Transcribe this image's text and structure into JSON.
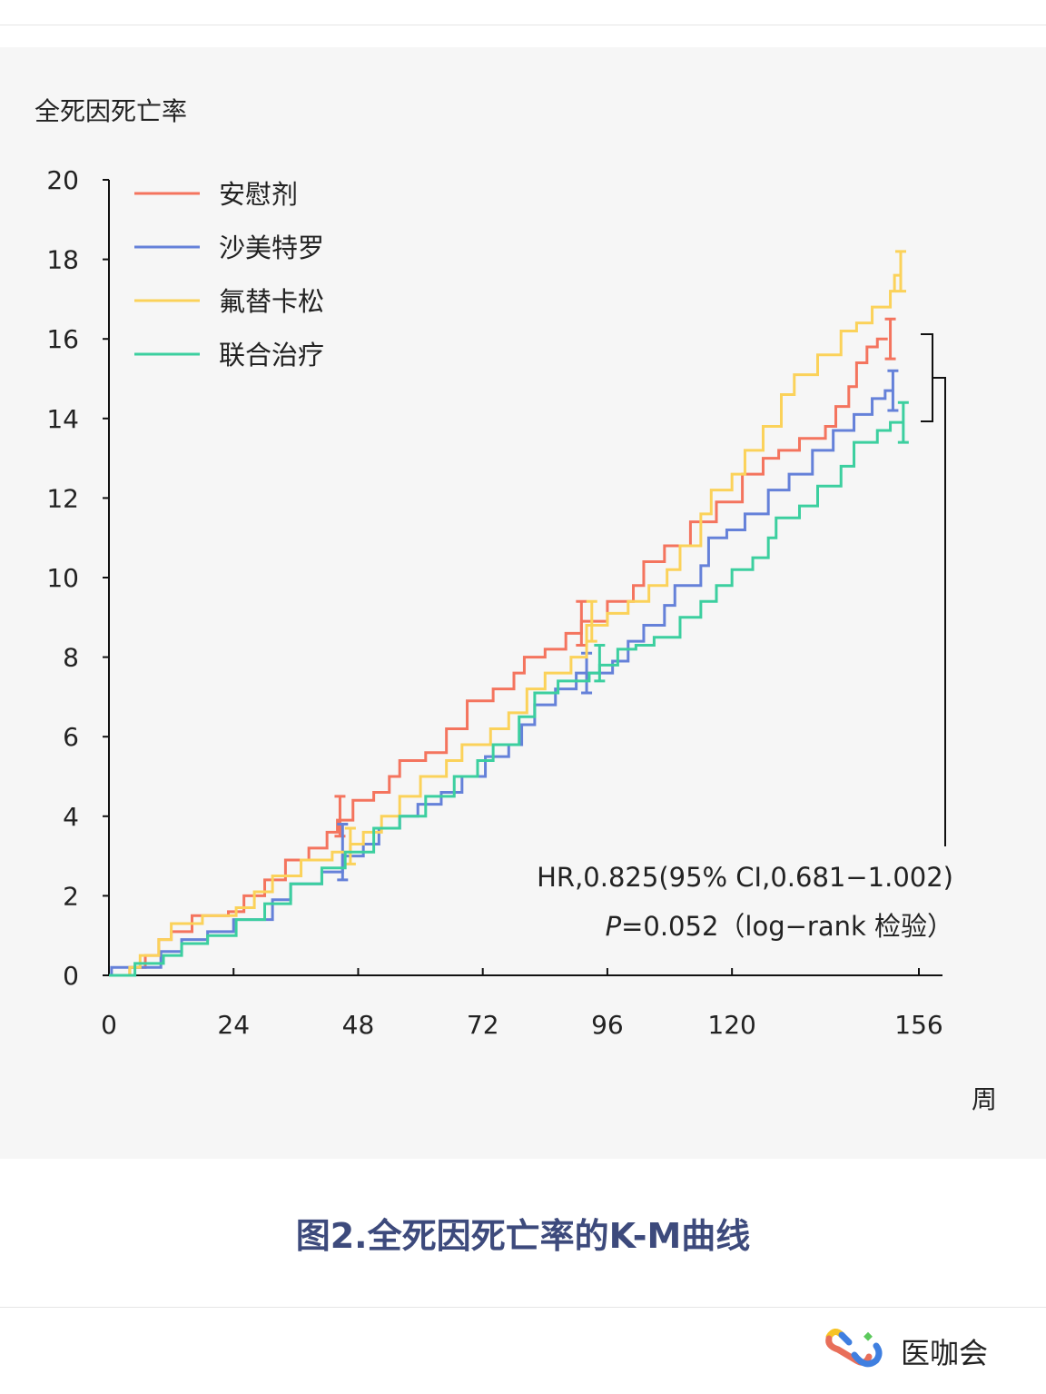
{
  "chart_data": {
    "type": "line",
    "style": "step",
    "title": "",
    "ylabel": "全死因死亡率",
    "xlabel": "周",
    "xlim": [
      0,
      160
    ],
    "ylim": [
      0,
      20
    ],
    "xticks": [
      0,
      24,
      48,
      72,
      96,
      120,
      156
    ],
    "yticks": [
      0,
      2,
      4,
      6,
      8,
      10,
      12,
      14,
      16,
      18,
      20
    ],
    "legend_position": "top-left",
    "series": [
      {
        "name": "安慰剂",
        "color": "#f4745e",
        "points": [
          [
            0,
            0
          ],
          [
            4,
            0.2
          ],
          [
            7,
            0.5
          ],
          [
            9.6,
            0.9
          ],
          [
            12,
            1.1
          ],
          [
            16,
            1.5
          ],
          [
            23,
            1.6
          ],
          [
            26,
            2.0
          ],
          [
            30,
            2.4
          ],
          [
            34,
            2.9
          ],
          [
            38.5,
            3.2
          ],
          [
            42,
            3.6
          ],
          [
            44,
            3.9
          ],
          [
            47,
            4.4
          ],
          [
            51,
            4.6
          ],
          [
            54,
            5.0
          ],
          [
            56,
            5.4
          ],
          [
            61,
            5.6
          ],
          [
            65,
            6.2
          ],
          [
            69,
            6.9
          ],
          [
            74,
            7.2
          ],
          [
            78,
            7.6
          ],
          [
            80,
            8.0
          ],
          [
            84,
            8.2
          ],
          [
            88,
            8.6
          ],
          [
            91,
            8.9
          ],
          [
            96,
            9.4
          ],
          [
            101,
            9.8
          ],
          [
            103,
            10.4
          ],
          [
            107,
            10.8
          ],
          [
            112,
            11.4
          ],
          [
            117,
            11.9
          ],
          [
            122,
            12.6
          ],
          [
            126,
            13.0
          ],
          [
            129,
            13.2
          ],
          [
            133,
            13.5
          ],
          [
            138,
            13.8
          ],
          [
            140,
            14.3
          ],
          [
            142.5,
            14.8
          ],
          [
            144,
            15.4
          ],
          [
            146,
            15.8
          ],
          [
            148,
            16.0
          ],
          [
            150,
            16.0
          ]
        ],
        "error_bars": [
          [
            44.5,
            3.5,
            4.5
          ],
          [
            91,
            8.3,
            9.4
          ],
          [
            150.5,
            15.5,
            16.5
          ]
        ]
      },
      {
        "name": "沙美特罗",
        "color": "#6581d9",
        "points": [
          [
            0,
            0
          ],
          [
            0.5,
            0.2
          ],
          [
            10,
            0.6
          ],
          [
            14,
            0.9
          ],
          [
            19,
            1.1
          ],
          [
            24,
            1.4
          ],
          [
            31.5,
            1.9
          ],
          [
            35,
            2.3
          ],
          [
            41,
            2.6
          ],
          [
            45,
            3.0
          ],
          [
            49,
            3.3
          ],
          [
            52,
            3.7
          ],
          [
            56,
            4.0
          ],
          [
            59.5,
            4.3
          ],
          [
            64,
            4.6
          ],
          [
            68,
            5.0
          ],
          [
            72.5,
            5.5
          ],
          [
            77,
            5.8
          ],
          [
            79.5,
            6.3
          ],
          [
            82,
            6.8
          ],
          [
            86,
            7.2
          ],
          [
            90,
            7.6
          ],
          [
            97,
            7.9
          ],
          [
            100,
            8.4
          ],
          [
            103,
            8.8
          ],
          [
            107,
            9.3
          ],
          [
            109,
            9.8
          ],
          [
            114,
            10.3
          ],
          [
            115.5,
            11.0
          ],
          [
            119,
            11.2
          ],
          [
            122.5,
            11.6
          ],
          [
            127,
            12.2
          ],
          [
            131,
            12.6
          ],
          [
            135.5,
            13.2
          ],
          [
            139.5,
            13.7
          ],
          [
            143.5,
            14.1
          ],
          [
            147,
            14.5
          ],
          [
            149.5,
            14.7
          ],
          [
            151,
            14.7
          ]
        ],
        "error_bars": [
          [
            45,
            2.4,
            3.8
          ],
          [
            92,
            7.1,
            8.1
          ],
          [
            151,
            14.2,
            15.2
          ]
        ]
      },
      {
        "name": "氟替卡松",
        "color": "#fbd25a",
        "points": [
          [
            0,
            0
          ],
          [
            4,
            0.2
          ],
          [
            6,
            0.5
          ],
          [
            9.6,
            0.9
          ],
          [
            12,
            1.3
          ],
          [
            18,
            1.5
          ],
          [
            24.5,
            1.7
          ],
          [
            28,
            2.1
          ],
          [
            31.5,
            2.5
          ],
          [
            37,
            2.9
          ],
          [
            43,
            3.1
          ],
          [
            46.5,
            3.3
          ],
          [
            49,
            3.6
          ],
          [
            52.5,
            4.0
          ],
          [
            56,
            4.5
          ],
          [
            60,
            5.0
          ],
          [
            65,
            5.4
          ],
          [
            68,
            5.8
          ],
          [
            73.5,
            6.2
          ],
          [
            77,
            6.6
          ],
          [
            80.5,
            7.2
          ],
          [
            84,
            7.6
          ],
          [
            89,
            8.0
          ],
          [
            92,
            8.8
          ],
          [
            96,
            9.1
          ],
          [
            100,
            9.4
          ],
          [
            104,
            9.8
          ],
          [
            107.5,
            10.2
          ],
          [
            110,
            10.8
          ],
          [
            114,
            11.6
          ],
          [
            116,
            12.2
          ],
          [
            120,
            12.6
          ],
          [
            122.5,
            13.2
          ],
          [
            126,
            13.8
          ],
          [
            129.5,
            14.6
          ],
          [
            132,
            15.1
          ],
          [
            136.5,
            15.6
          ],
          [
            141,
            16.2
          ],
          [
            144,
            16.4
          ],
          [
            147,
            16.8
          ],
          [
            150.5,
            17.2
          ],
          [
            151.3,
            17.6
          ],
          [
            152.5,
            17.7
          ]
        ],
        "error_bars": [
          [
            46.5,
            2.8,
            3.7
          ],
          [
            93,
            8.4,
            9.4
          ],
          [
            152.5,
            17.2,
            18.2
          ]
        ]
      },
      {
        "name": "联合治疗",
        "color": "#3ccf9f",
        "points": [
          [
            0,
            0
          ],
          [
            5,
            0.3
          ],
          [
            10.5,
            0.5
          ],
          [
            14,
            0.8
          ],
          [
            19,
            1.0
          ],
          [
            24.5,
            1.4
          ],
          [
            30,
            1.8
          ],
          [
            35,
            2.3
          ],
          [
            41,
            2.7
          ],
          [
            45.5,
            3.1
          ],
          [
            51,
            3.7
          ],
          [
            56,
            4.0
          ],
          [
            61,
            4.5
          ],
          [
            66.5,
            5.0
          ],
          [
            71,
            5.4
          ],
          [
            74,
            5.8
          ],
          [
            79,
            6.5
          ],
          [
            82,
            7.1
          ],
          [
            86.5,
            7.4
          ],
          [
            92.5,
            7.6
          ],
          [
            94.5,
            7.8
          ],
          [
            98,
            8.2
          ],
          [
            101.5,
            8.3
          ],
          [
            105,
            8.5
          ],
          [
            110,
            9.0
          ],
          [
            114,
            9.4
          ],
          [
            117,
            9.8
          ],
          [
            120,
            10.2
          ],
          [
            124,
            10.5
          ],
          [
            127,
            11.0
          ],
          [
            128.5,
            11.5
          ],
          [
            133,
            11.8
          ],
          [
            136.5,
            12.3
          ],
          [
            141,
            12.8
          ],
          [
            143.5,
            13.4
          ],
          [
            148,
            13.7
          ],
          [
            150.5,
            13.9
          ],
          [
            153,
            13.9
          ]
        ],
        "error_bars": [
          [
            94.5,
            7.4,
            8.3
          ],
          [
            153,
            13.4,
            14.4
          ]
        ]
      }
    ],
    "annotations": [
      "HR,0.825(95% CI,0.681−1.002)",
      "P",
      "=0.052（log−rank 检验）"
    ]
  },
  "caption": "图2.全死因死亡率的K-M曲线",
  "brand": "医咖会"
}
